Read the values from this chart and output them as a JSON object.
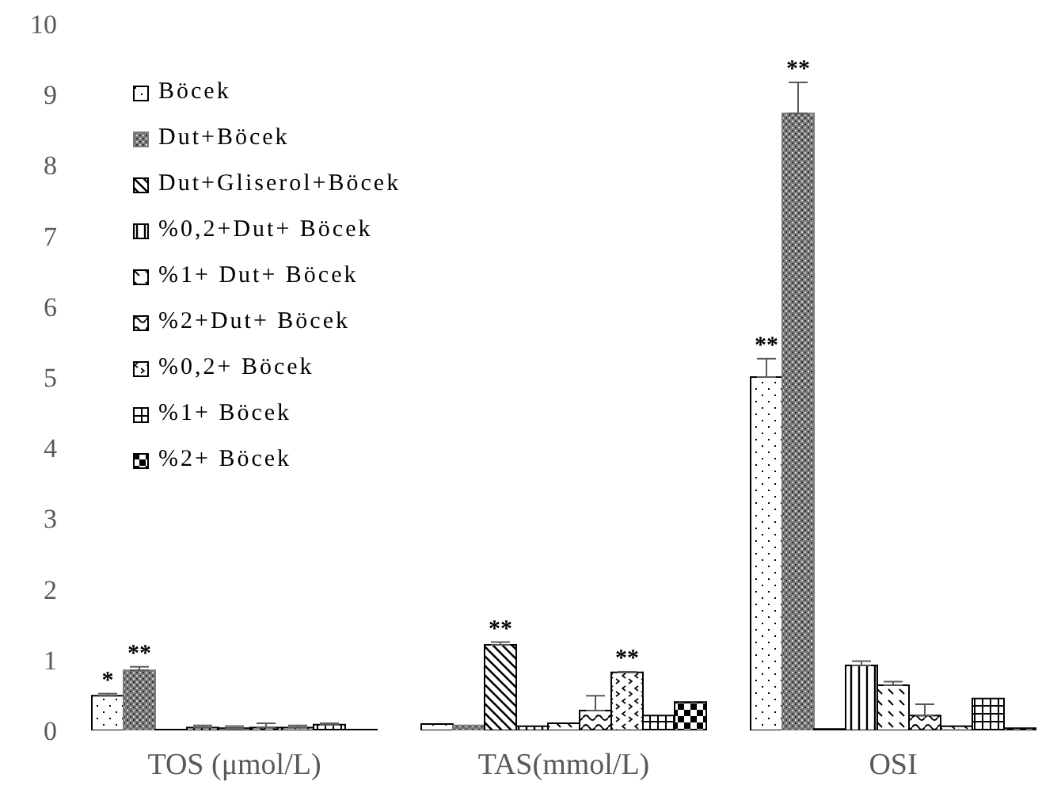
{
  "chart_data": {
    "type": "bar",
    "categories": [
      "TOS (μmol/L)",
      "TAS(mmol/L)",
      "OSI"
    ],
    "series": [
      {
        "name": "Böcek",
        "color": "#000000",
        "values": [
          0.49,
          0.09,
          5.0
        ],
        "errors": [
          [
            0.49,
            0.52
          ],
          null,
          [
            5.0,
            5.26
          ]
        ]
      },
      {
        "name": "Dut+Böcek",
        "color": "#7a7a7a",
        "values": [
          0.85,
          0.07,
          8.73
        ],
        "errors": [
          [
            0.85,
            0.9
          ],
          null,
          [
            8.73,
            9.17
          ]
        ]
      },
      {
        "name": "Dut+Gliserol+Böcek",
        "color": "#000000",
        "values": [
          0.01,
          1.21,
          0.02
        ],
        "errors": [
          null,
          [
            1.21,
            1.25
          ],
          null
        ]
      },
      {
        "name": "%0,2+Dut+ Böcek",
        "color": "#000000",
        "values": [
          0.04,
          0.06,
          0.92
        ],
        "errors": [
          [
            0.04,
            0.07
          ],
          null,
          [
            0.92,
            0.98
          ]
        ]
      },
      {
        "name": "%1+ Dut+ Böcek",
        "color": "#000000",
        "values": [
          0.03,
          0.1,
          0.64
        ],
        "errors": [
          [
            0.03,
            0.06
          ],
          null,
          [
            0.64,
            0.69
          ]
        ]
      },
      {
        "name": "%2+Dut+ Böcek",
        "color": "#000000",
        "values": [
          0.04,
          0.28,
          0.21
        ],
        "errors": [
          [
            0.04,
            0.1
          ],
          [
            0.28,
            0.49
          ],
          [
            0.21,
            0.37
          ]
        ]
      },
      {
        "name": "%0,2+ Böcek",
        "color": "#000000",
        "values": [
          0.04,
          0.82,
          0.06
        ],
        "errors": [
          [
            0.04,
            0.07
          ],
          [
            0.82,
            0.83
          ],
          null
        ]
      },
      {
        "name": "%1+ Böcek",
        "color": "#000000",
        "values": [
          0.08,
          0.21,
          0.45
        ],
        "errors": [
          [
            0.08,
            0.1
          ],
          null,
          null
        ]
      },
      {
        "name": "%2+ Böcek",
        "color": "#000000",
        "values": [
          0.01,
          0.4,
          0.03
        ]
      }
    ],
    "ylim": [
      0,
      10
    ],
    "yticks": [
      0,
      1,
      2,
      3,
      4,
      5,
      6,
      7,
      8,
      9,
      10
    ],
    "legend": "top left",
    "annotations": [
      "*",
      "**",
      "**",
      "**",
      "**",
      "**"
    ]
  }
}
